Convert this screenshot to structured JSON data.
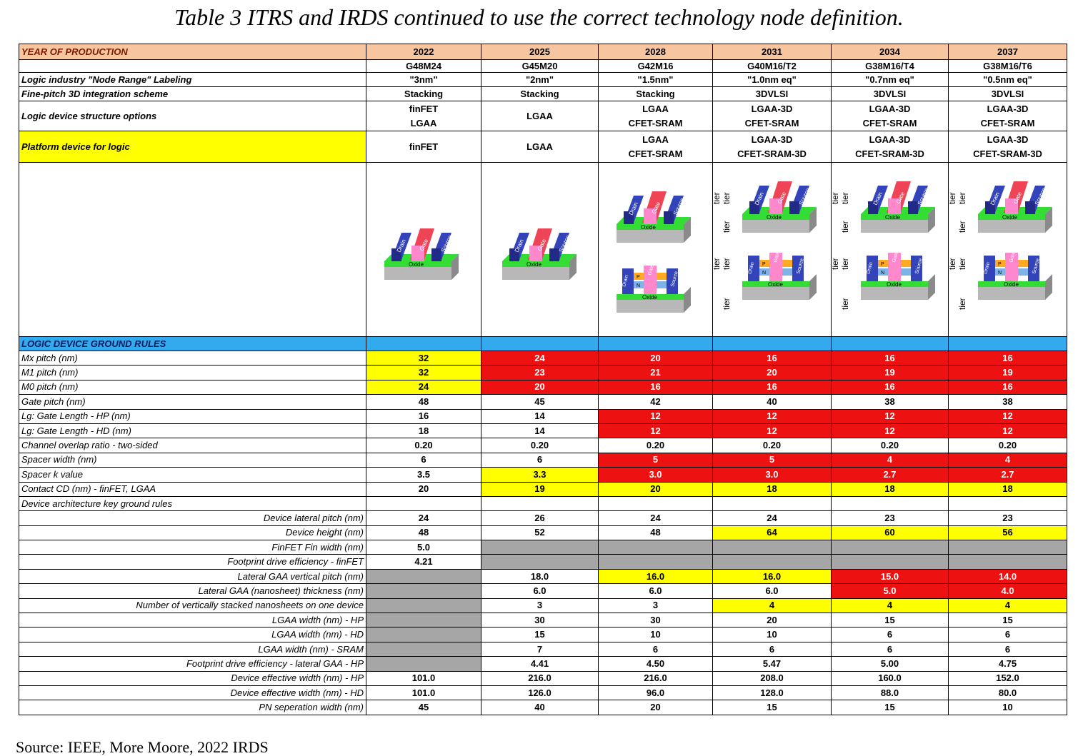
{
  "caption": "Table 3   ITRS and IRDS continued to use the correct technology node definition.",
  "source": "Source: IEEE, More Moore, 2022 IRDS",
  "header": {
    "label": "YEAR OF PRODUCTION",
    "years": [
      "2022",
      "2025",
      "2028",
      "2031",
      "2034",
      "2037"
    ]
  },
  "nodes": [
    "G48M24",
    "G45M20",
    "G42M16",
    "G40M16/T2",
    "G38M16/T4",
    "G38M16/T6"
  ],
  "top_rows": [
    {
      "label": "Logic industry \"Node Range\" Labeling",
      "values": [
        "\"3nm\"",
        "\"2nm\"",
        "\"1.5nm\"",
        "\"1.0nm eq\"",
        "\"0.7nm eq\"",
        "\"0.5nm eq\""
      ]
    },
    {
      "label": "Fine-pitch 3D integration scheme",
      "values": [
        "Stacking",
        "Stacking",
        "Stacking",
        "3DVLSI",
        "3DVLSI",
        "3DVLSI"
      ]
    }
  ],
  "structure_row": {
    "label": "Logic device structure options",
    "values": [
      [
        "finFET",
        "LGAA"
      ],
      [
        "LGAA"
      ],
      [
        "LGAA",
        "CFET-SRAM"
      ],
      [
        "LGAA-3D",
        "CFET-SRAM"
      ],
      [
        "LGAA-3D",
        "CFET-SRAM"
      ],
      [
        "LGAA-3D",
        "CFET-SRAM"
      ]
    ]
  },
  "platform_row": {
    "label": "Platform device for logic",
    "values": [
      [
        "finFET"
      ],
      [
        "LGAA"
      ],
      [
        "LGAA",
        "CFET-SRAM"
      ],
      [
        "LGAA-3D",
        "CFET-SRAM-3D"
      ],
      [
        "LGAA-3D",
        "CFET-SRAM-3D"
      ],
      [
        "LGAA-3D",
        "CFET-SRAM-3D"
      ]
    ]
  },
  "figure_labels": {
    "drain": "Drain",
    "gate": "Gate",
    "source": "Source",
    "oxide": "Oxide",
    "tier": "tier",
    "p": "P",
    "n": "N"
  },
  "section_title": "LOGIC DEVICE GROUND RULES",
  "rules": [
    {
      "label": "Mx pitch (nm)",
      "indent": false,
      "values": [
        "32",
        "24",
        "20",
        "16",
        "16",
        "16"
      ],
      "colors": [
        "yellow",
        "red",
        "red",
        "red",
        "red",
        "red"
      ]
    },
    {
      "label": "M1 pitch (nm)",
      "indent": false,
      "values": [
        "32",
        "23",
        "21",
        "20",
        "19",
        "19"
      ],
      "colors": [
        "yellow",
        "red",
        "red",
        "red",
        "red",
        "red"
      ]
    },
    {
      "label": "M0 pitch (nm)",
      "indent": false,
      "values": [
        "24",
        "20",
        "16",
        "16",
        "16",
        "16"
      ],
      "colors": [
        "yellow",
        "red",
        "red",
        "red",
        "red",
        "red"
      ]
    },
    {
      "label": "Gate pitch (nm)",
      "indent": false,
      "values": [
        "48",
        "45",
        "42",
        "40",
        "38",
        "38"
      ],
      "colors": [
        "",
        "",
        "",
        "",
        "",
        ""
      ]
    },
    {
      "label": "Lg: Gate Length - HP (nm)",
      "indent": false,
      "values": [
        "16",
        "14",
        "12",
        "12",
        "12",
        "12"
      ],
      "colors": [
        "",
        "",
        "red",
        "red",
        "red",
        "red"
      ]
    },
    {
      "label": "Lg: Gate Length - HD (nm)",
      "indent": false,
      "values": [
        "18",
        "14",
        "12",
        "12",
        "12",
        "12"
      ],
      "colors": [
        "",
        "",
        "red",
        "red",
        "red",
        "red"
      ]
    },
    {
      "label": "Channel overlap ratio - two-sided",
      "indent": false,
      "values": [
        "0.20",
        "0.20",
        "0.20",
        "0.20",
        "0.20",
        "0.20"
      ],
      "colors": [
        "",
        "",
        "",
        "",
        "",
        ""
      ]
    },
    {
      "label": "Spacer width (nm)",
      "indent": false,
      "values": [
        "6",
        "6",
        "5",
        "5",
        "4",
        "4"
      ],
      "colors": [
        "",
        "",
        "red",
        "red",
        "red",
        "red"
      ]
    },
    {
      "label": "Spacer k value",
      "indent": false,
      "values": [
        "3.5",
        "3.3",
        "3.0",
        "3.0",
        "2.7",
        "2.7"
      ],
      "colors": [
        "",
        "yellow",
        "red",
        "red",
        "red",
        "red"
      ]
    },
    {
      "label": "Contact CD (nm) - finFET, LGAA",
      "indent": false,
      "values": [
        "20",
        "19",
        "20",
        "18",
        "18",
        "18"
      ],
      "colors": [
        "",
        "yellow",
        "yellow",
        "yellow",
        "yellow",
        "yellow"
      ]
    },
    {
      "label": "Device architecture key ground rules",
      "indent": false,
      "values": [
        "",
        "",
        "",
        "",
        "",
        ""
      ],
      "colors": [
        "",
        "",
        "",
        "",
        "",
        ""
      ],
      "noborder": true
    },
    {
      "label": "Device lateral pitch (nm)",
      "indent": true,
      "values": [
        "24",
        "26",
        "24",
        "24",
        "23",
        "23"
      ],
      "colors": [
        "",
        "",
        "",
        "",
        "",
        ""
      ]
    },
    {
      "label": "Device height (nm)",
      "indent": true,
      "values": [
        "48",
        "52",
        "48",
        "64",
        "60",
        "56"
      ],
      "colors": [
        "",
        "",
        "",
        "yellow",
        "yellow",
        "yellow"
      ]
    },
    {
      "label": "FinFET Fin width (nm)",
      "indent": true,
      "values": [
        "5.0",
        "",
        "",
        "",
        "",
        ""
      ],
      "colors": [
        "",
        "gray",
        "gray",
        "gray",
        "gray",
        "gray"
      ]
    },
    {
      "label": "Footprint drive efficiency - finFET",
      "indent": true,
      "values": [
        "4.21",
        "",
        "",
        "",
        "",
        ""
      ],
      "colors": [
        "",
        "gray",
        "gray",
        "gray",
        "gray",
        "gray"
      ]
    },
    {
      "label": "Lateral GAA vertical pitch (nm)",
      "indent": true,
      "values": [
        "",
        "18.0",
        "16.0",
        "16.0",
        "15.0",
        "14.0"
      ],
      "colors": [
        "gray",
        "",
        "yellow",
        "yellow",
        "red",
        "red"
      ]
    },
    {
      "label": "Lateral GAA (nanosheet) thickness (nm)",
      "indent": true,
      "values": [
        "",
        "6.0",
        "6.0",
        "6.0",
        "5.0",
        "4.0"
      ],
      "colors": [
        "gray",
        "",
        "",
        "",
        "red",
        "red"
      ]
    },
    {
      "label": "Number of vertically stacked nanosheets on one device",
      "indent": true,
      "values": [
        "",
        "3",
        "3",
        "4",
        "4",
        "4"
      ],
      "colors": [
        "gray",
        "",
        "",
        "yellow",
        "yellow",
        "yellow"
      ]
    },
    {
      "label": "LGAA width (nm) - HP",
      "indent": true,
      "values": [
        "",
        "30",
        "30",
        "20",
        "15",
        "15"
      ],
      "colors": [
        "gray",
        "",
        "",
        "",
        "",
        ""
      ]
    },
    {
      "label": "LGAA width (nm) - HD",
      "indent": true,
      "values": [
        "",
        "15",
        "10",
        "10",
        "6",
        "6"
      ],
      "colors": [
        "gray",
        "",
        "",
        "",
        "",
        ""
      ]
    },
    {
      "label": "LGAA width (nm) - SRAM",
      "indent": true,
      "values": [
        "",
        "7",
        "6",
        "6",
        "6",
        "6"
      ],
      "colors": [
        "gray",
        "",
        "",
        "",
        "",
        ""
      ]
    },
    {
      "label": "Footprint drive efficiency - lateral GAA - HP",
      "indent": true,
      "values": [
        "",
        "4.41",
        "4.50",
        "5.47",
        "5.00",
        "4.75"
      ],
      "colors": [
        "gray",
        "",
        "",
        "",
        "",
        ""
      ]
    },
    {
      "label": "Device effective width (nm) - HP",
      "indent": true,
      "values": [
        "101.0",
        "216.0",
        "216.0",
        "208.0",
        "160.0",
        "152.0"
      ],
      "colors": [
        "",
        "",
        "",
        "",
        "",
        ""
      ]
    },
    {
      "label": "Device effective width (nm) - HD",
      "indent": true,
      "values": [
        "101.0",
        "126.0",
        "96.0",
        "128.0",
        "88.0",
        "80.0"
      ],
      "colors": [
        "",
        "",
        "",
        "",
        "",
        ""
      ]
    },
    {
      "label": "PN seperation width (nm)",
      "indent": true,
      "values": [
        "45",
        "40",
        "20",
        "15",
        "15",
        "10"
      ],
      "colors": [
        "",
        "",
        "",
        "",
        "",
        ""
      ]
    }
  ],
  "colors": {
    "header": "#f7c59f",
    "section": "#33aaee",
    "red": "#ee1111",
    "yellow": "#ffff00",
    "gray": "#a6a6a6"
  }
}
